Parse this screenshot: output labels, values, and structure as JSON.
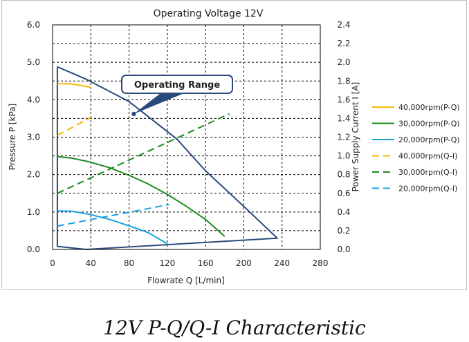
{
  "chart_data": {
    "type": "line",
    "title": "Operating Voltage 12V",
    "xlabel": "Flowrate Q [L/min]",
    "ylabel": "Pressure P [kPa]",
    "y2label": "Power Supply Current I [A]",
    "xlim": [
      0,
      280
    ],
    "ylim": [
      0,
      6
    ],
    "y2lim": [
      0,
      2.4
    ],
    "xticks": [
      "0",
      "40",
      "80",
      "120",
      "160",
      "200",
      "240",
      "280"
    ],
    "yticks": [
      "0.0",
      "1.0",
      "2.0",
      "3.0",
      "4.0",
      "5.0",
      "6.0"
    ],
    "y2ticks": [
      "0.0",
      "0.2",
      "0.4",
      "0.6",
      "0.8",
      "1.0",
      "1.2",
      "1.4",
      "1.6",
      "1.8",
      "2.0",
      "2.2",
      "2.4"
    ],
    "grid": true,
    "legend_position": "right",
    "annotation": "Operating Range",
    "annotation_point": [
      85,
      3.62
    ],
    "operating_range": [
      [
        5,
        4.88
      ],
      [
        35,
        4.55
      ],
      [
        50,
        4.35
      ],
      [
        80,
        3.95
      ],
      [
        110,
        3.35
      ],
      [
        130,
        2.95
      ],
      [
        160,
        2.1
      ],
      [
        200,
        1.15
      ],
      [
        235,
        0.3
      ],
      [
        35,
        0.0
      ],
      [
        5,
        0.08
      ],
      [
        5,
        4.88
      ]
    ],
    "series": [
      {
        "name": "40,000rpm(P-Q)",
        "axis": "left",
        "style": "solid",
        "color": "#f5b800",
        "points": [
          [
            5,
            4.43
          ],
          [
            20,
            4.42
          ],
          [
            30,
            4.38
          ],
          [
            40,
            4.33
          ]
        ]
      },
      {
        "name": "30,000rpm(P-Q)",
        "axis": "left",
        "style": "solid",
        "color": "#1a8a1a",
        "points": [
          [
            5,
            2.48
          ],
          [
            20,
            2.44
          ],
          [
            40,
            2.33
          ],
          [
            60,
            2.18
          ],
          [
            80,
            1.98
          ],
          [
            100,
            1.75
          ],
          [
            120,
            1.47
          ],
          [
            140,
            1.15
          ],
          [
            160,
            0.8
          ],
          [
            180,
            0.35
          ]
        ]
      },
      {
        "name": "20,000rpm(P-Q)",
        "axis": "left",
        "style": "solid",
        "color": "#1aa0e0",
        "points": [
          [
            5,
            1.03
          ],
          [
            20,
            1.02
          ],
          [
            40,
            0.93
          ],
          [
            60,
            0.8
          ],
          [
            80,
            0.63
          ],
          [
            100,
            0.45
          ],
          [
            120,
            0.15
          ]
        ]
      },
      {
        "name": "40,000rpm(Q-I)",
        "axis": "right",
        "style": "dashed",
        "color": "#f5b800",
        "points": [
          [
            5,
            1.22
          ],
          [
            40,
            1.41
          ]
        ]
      },
      {
        "name": "30,000rpm(Q-I)",
        "axis": "right",
        "style": "dashed",
        "color": "#1a8a1a",
        "points": [
          [
            5,
            0.6
          ],
          [
            185,
            1.45
          ]
        ]
      },
      {
        "name": "20,000rpm(Q-I)",
        "axis": "right",
        "style": "dashed",
        "color": "#1aa0e0",
        "points": [
          [
            5,
            0.25
          ],
          [
            122,
            0.48
          ]
        ]
      }
    ]
  },
  "caption": "12V P-Q/Q-I Characteristic",
  "colors": {
    "range": "#2a4a7e",
    "grid": "#000000"
  }
}
